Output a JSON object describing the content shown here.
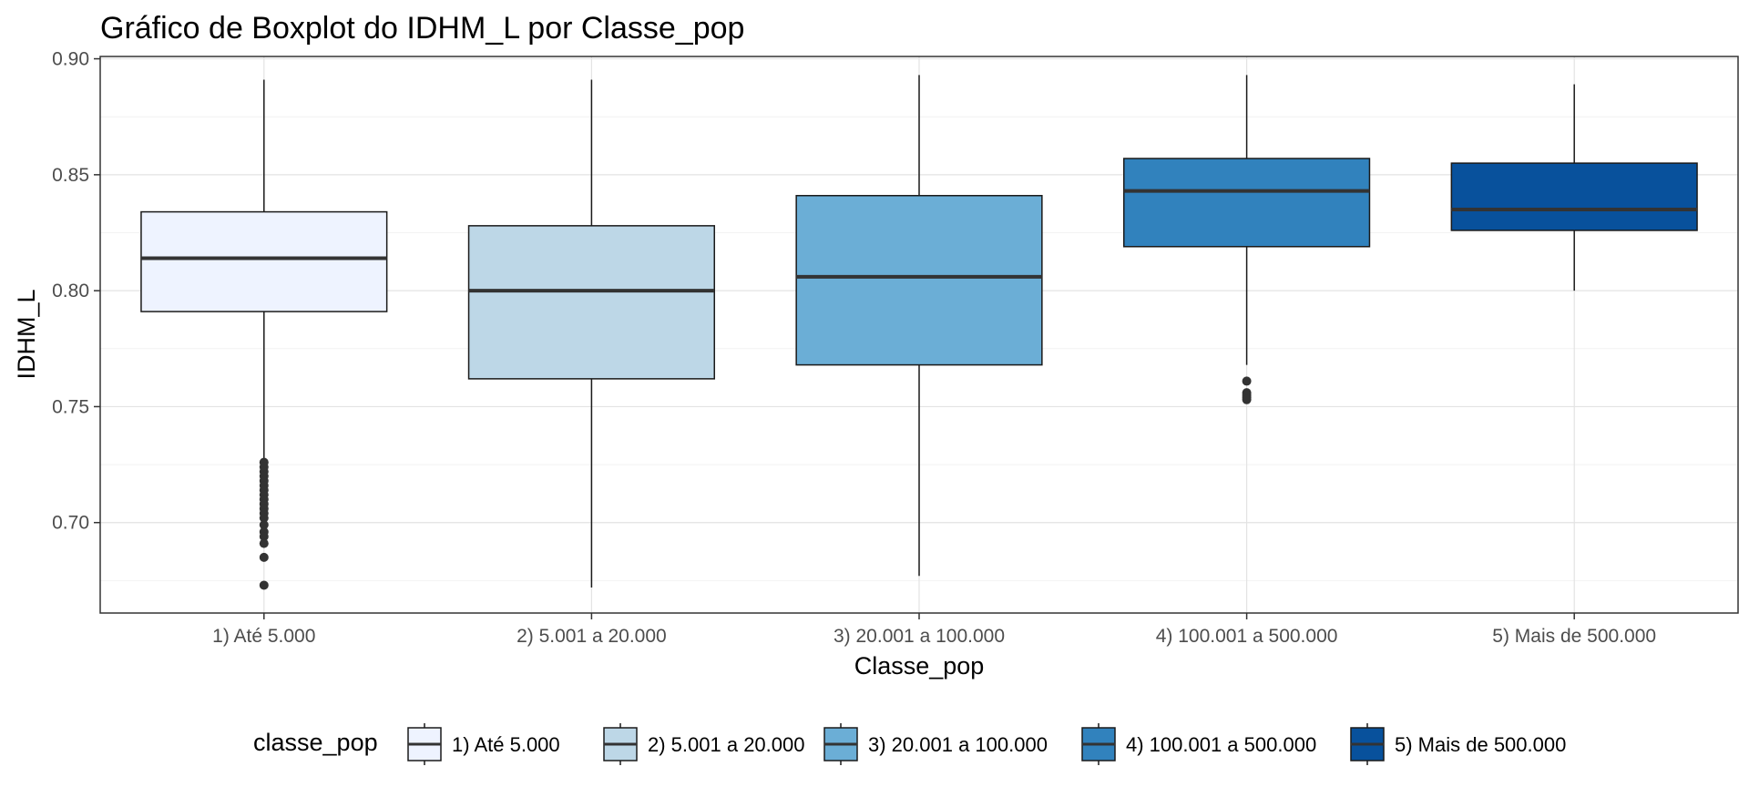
{
  "chart_data": {
    "type": "boxplot",
    "title": "Gráfico de Boxplot do IDHM_L por Classe_pop",
    "xlabel": "Classe_pop",
    "ylabel": "IDHM_L",
    "ylim": [
      0.661,
      0.901
    ],
    "yticks": [
      0.7,
      0.75,
      0.8,
      0.85,
      0.9
    ],
    "ytick_labels": [
      "0.70",
      "0.75",
      "0.80",
      "0.85",
      "0.90"
    ],
    "grid": true,
    "legend_title": "classe_pop",
    "legend_position": "bottom",
    "categories": [
      "1) Até 5.000",
      "2) 5.001 a 20.000",
      "3) 20.001 a 100.000",
      "4) 100.001 a 500.000",
      "5) Mais de 500.000"
    ],
    "colors": [
      "#eef3ff",
      "#bdd7e7",
      "#6baed6",
      "#3182bd",
      "#08519c"
    ],
    "boxes": [
      {
        "whisker_low": 0.727,
        "q1": 0.791,
        "median": 0.814,
        "q3": 0.834,
        "whisker_high": 0.891,
        "outliers": [
          0.726,
          0.724,
          0.722,
          0.72,
          0.718,
          0.716,
          0.714,
          0.712,
          0.71,
          0.708,
          0.706,
          0.704,
          0.702,
          0.699,
          0.696,
          0.694,
          0.691,
          0.685,
          0.673
        ]
      },
      {
        "whisker_low": 0.672,
        "q1": 0.762,
        "median": 0.8,
        "q3": 0.828,
        "whisker_high": 0.891,
        "outliers": []
      },
      {
        "whisker_low": 0.677,
        "q1": 0.768,
        "median": 0.806,
        "q3": 0.841,
        "whisker_high": 0.893,
        "outliers": []
      },
      {
        "whisker_low": 0.768,
        "q1": 0.819,
        "median": 0.843,
        "q3": 0.857,
        "whisker_high": 0.893,
        "outliers": [
          0.761,
          0.756,
          0.755,
          0.754,
          0.753
        ]
      },
      {
        "whisker_low": 0.8,
        "q1": 0.826,
        "median": 0.835,
        "q3": 0.855,
        "whisker_high": 0.889,
        "outliers": []
      }
    ]
  }
}
